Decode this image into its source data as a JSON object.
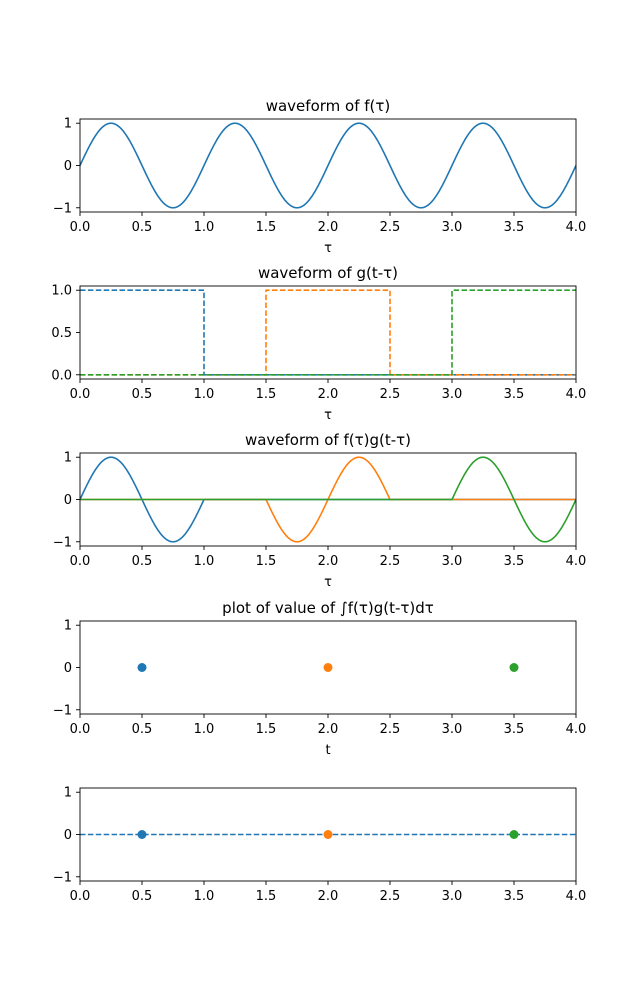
{
  "chart_data": [
    {
      "type": "line",
      "title": "waveform of f(τ)",
      "xlabel": "τ",
      "ylabel": "",
      "xlim": [
        0,
        4
      ],
      "ylim": [
        -1.1,
        1.1
      ],
      "xticks": [
        "0.0",
        "0.5",
        "1.0",
        "1.5",
        "2.0",
        "2.5",
        "3.0",
        "3.5",
        "4.0"
      ],
      "yticks": [
        "−1",
        "0",
        "1"
      ],
      "series": [
        {
          "function": "sin(2πτ)",
          "x_range": [
            0,
            4
          ],
          "color": "#1f77b4",
          "style": "solid"
        }
      ]
    },
    {
      "type": "line",
      "title": "waveform of g(t-τ)",
      "xlabel": "τ",
      "ylabel": "",
      "xlim": [
        0,
        4
      ],
      "ylim": [
        -0.05,
        1.05
      ],
      "xticks": [
        "0.0",
        "0.5",
        "1.0",
        "1.5",
        "2.0",
        "2.5",
        "3.0",
        "3.5",
        "4.0"
      ],
      "yticks": [
        "0.0",
        "0.5",
        "1.0"
      ],
      "series": [
        {
          "x": [
            0,
            1,
            1,
            4
          ],
          "y": [
            1,
            1,
            0,
            0
          ],
          "color": "#1f77b4",
          "style": "dashed"
        },
        {
          "x": [
            0,
            1.5,
            1.5,
            2.5,
            2.5,
            4
          ],
          "y": [
            0,
            0,
            1,
            1,
            0,
            0
          ],
          "color": "#ff7f0e",
          "style": "dashed"
        },
        {
          "x": [
            0,
            3,
            3,
            4
          ],
          "y": [
            0,
            0,
            1,
            1
          ],
          "color": "#2ca02c",
          "style": "dashed"
        }
      ]
    },
    {
      "type": "line",
      "title": "waveform of f(τ)g(t-τ)",
      "xlabel": "τ",
      "ylabel": "",
      "xlim": [
        0,
        4
      ],
      "ylim": [
        -1.1,
        1.1
      ],
      "xticks": [
        "0.0",
        "0.5",
        "1.0",
        "1.5",
        "2.0",
        "2.5",
        "3.0",
        "3.5",
        "4.0"
      ],
      "yticks": [
        "−1",
        "0",
        "1"
      ],
      "series": [
        {
          "function": "sin(2πτ) for τ in [0,1], else 0",
          "window": [
            0,
            1
          ],
          "color": "#1f77b4",
          "style": "solid"
        },
        {
          "function": "sin(2πτ) for τ in [1.5,2.5], else 0",
          "window": [
            1.5,
            2.5
          ],
          "color": "#ff7f0e",
          "style": "solid"
        },
        {
          "function": "sin(2πτ) for τ in [3,4], else 0",
          "window": [
            3,
            4
          ],
          "color": "#2ca02c",
          "style": "solid"
        }
      ]
    },
    {
      "type": "scatter",
      "title": "plot of value of ∫f(τ)g(t-τ)dτ",
      "xlabel": "t",
      "ylabel": "",
      "xlim": [
        0,
        4
      ],
      "ylim": [
        -1.1,
        1.1
      ],
      "xticks": [
        "0.0",
        "0.5",
        "1.0",
        "1.5",
        "2.0",
        "2.5",
        "3.0",
        "3.5",
        "4.0"
      ],
      "yticks": [
        "−1",
        "0",
        "1"
      ],
      "series": [
        {
          "x": [
            0.5
          ],
          "y": [
            0
          ],
          "color": "#1f77b4"
        },
        {
          "x": [
            2.0
          ],
          "y": [
            0
          ],
          "color": "#ff7f0e"
        },
        {
          "x": [
            3.5
          ],
          "y": [
            0
          ],
          "color": "#2ca02c"
        }
      ]
    },
    {
      "type": "scatter",
      "title": "",
      "xlabel": "",
      "ylabel": "",
      "xlim": [
        0,
        4
      ],
      "ylim": [
        -1.1,
        1.1
      ],
      "xticks": [
        "0.0",
        "0.5",
        "1.0",
        "1.5",
        "2.0",
        "2.5",
        "3.0",
        "3.5",
        "4.0"
      ],
      "yticks": [
        "−1",
        "0",
        "1"
      ],
      "series": [
        {
          "x": [
            0.5
          ],
          "y": [
            0
          ],
          "color": "#1f77b4"
        },
        {
          "x": [
            2.0
          ],
          "y": [
            0
          ],
          "color": "#ff7f0e"
        },
        {
          "x": [
            3.5
          ],
          "y": [
            0
          ],
          "color": "#2ca02c"
        }
      ],
      "reference_line": {
        "y": 0,
        "color": "#1f77b4",
        "style": "dashed"
      }
    }
  ]
}
